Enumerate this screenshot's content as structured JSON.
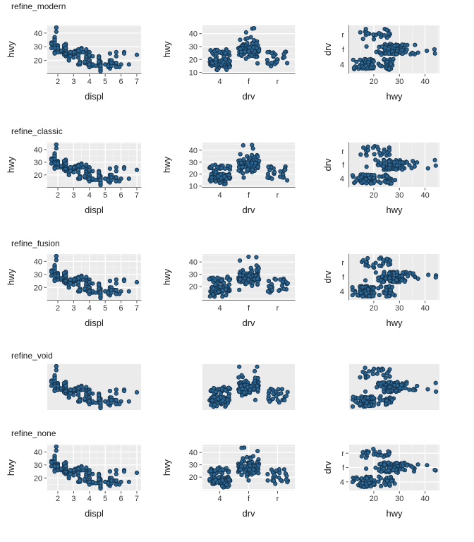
{
  "figure": {
    "description": "grid of scatter plots comparing five ggplot theme refinements",
    "row_titles": [
      "refine_modern",
      "refine_classic",
      "refine_fusion",
      "refine_void",
      "refine_none"
    ]
  },
  "colors": {
    "page_bg": "#ffffff",
    "panel_bg": "#EBEBEB",
    "grid_major": "#FFFFFF",
    "grid_minor": "#F5F5F5",
    "axis_line": "#7F7F7F",
    "tick_mark": "#555555",
    "tick_label": "#333333",
    "axis_title": "#1a1a1a",
    "title": "#1a1a1a",
    "point_fill": "#2c6793",
    "point_stroke": "#15344f"
  },
  "chart_data": {
    "type": "scatter",
    "variables": [
      "displ",
      "hwy",
      "drv"
    ],
    "rows": [
      {
        "title": "refine_modern",
        "axis_text": true,
        "grid": "horizontal-only on xy plot"
      },
      {
        "title": "refine_classic",
        "axis_text": true,
        "grid": "full grid on xy plot"
      },
      {
        "title": "refine_fusion",
        "axis_text": true,
        "grid": "full grid on xy plot"
      },
      {
        "title": "refine_void",
        "axis_text": false,
        "grid": "none"
      },
      {
        "title": "refine_none",
        "axis_text": true,
        "grid": "full grid, ticks on all axes"
      }
    ],
    "panels": [
      {
        "xlabel": "displ",
        "ylabel": "hwy",
        "x_ticks": [
          2,
          3,
          4,
          5,
          6,
          7
        ],
        "y_ticks": [
          20,
          30,
          40
        ],
        "x_minor": [
          1.5,
          2.5,
          3.5,
          4.5,
          5.5,
          6.5
        ],
        "y_minor": [
          15,
          25,
          35,
          45
        ],
        "x_range": [
          1.33,
          7.27
        ],
        "y_range": [
          10.4,
          45.6
        ],
        "jitter": false
      },
      {
        "xlabel": "drv",
        "ylabel": "hwy",
        "x_categories": [
          "4",
          "f",
          "r"
        ],
        "y_grid": [
          10,
          20,
          30,
          40
        ],
        "y_minor": [
          15,
          25,
          35,
          45
        ],
        "y_ticks_rows_1_2": [
          10,
          20,
          30,
          40
        ],
        "y_ticks_rows_3_5": [
          20,
          30,
          40
        ],
        "x_range": [
          0.4,
          3.6
        ],
        "y_range": [
          9.2,
          46.4
        ],
        "jitter": true
      },
      {
        "xlabel": "hwy",
        "ylabel": "drv",
        "x_ticks": [
          20,
          30,
          40
        ],
        "x_minor": [
          15,
          25,
          35,
          45
        ],
        "y_categories_top_to_bottom": [
          "r",
          "f",
          "4"
        ],
        "x_range": [
          10.4,
          45.6
        ],
        "y_range": [
          0.4,
          3.6
        ],
        "jitter": true
      }
    ],
    "points_format": [
      "displ",
      "hwy",
      "drv"
    ],
    "points": [
      [
        1.8,
        29,
        "f"
      ],
      [
        1.8,
        29,
        "f"
      ],
      [
        2,
        31,
        "f"
      ],
      [
        2,
        30,
        "f"
      ],
      [
        2.8,
        26,
        "f"
      ],
      [
        2.8,
        26,
        "f"
      ],
      [
        3.1,
        27,
        "f"
      ],
      [
        1.8,
        26,
        "4"
      ],
      [
        1.8,
        25,
        "4"
      ],
      [
        2,
        28,
        "4"
      ],
      [
        2,
        27,
        "4"
      ],
      [
        2.8,
        25,
        "4"
      ],
      [
        2.8,
        25,
        "4"
      ],
      [
        3.1,
        25,
        "4"
      ],
      [
        3.1,
        25,
        "4"
      ],
      [
        2.8,
        24,
        "4"
      ],
      [
        3.1,
        25,
        "4"
      ],
      [
        4.2,
        23,
        "4"
      ],
      [
        5.3,
        20,
        "r"
      ],
      [
        5.3,
        15,
        "r"
      ],
      [
        5.3,
        20,
        "r"
      ],
      [
        5.7,
        17,
        "r"
      ],
      [
        6,
        17,
        "r"
      ],
      [
        5.7,
        26,
        "r"
      ],
      [
        5.7,
        23,
        "r"
      ],
      [
        6.2,
        26,
        "r"
      ],
      [
        6.2,
        25,
        "r"
      ],
      [
        7,
        24,
        "r"
      ],
      [
        5.3,
        19,
        "4"
      ],
      [
        5.3,
        14,
        "4"
      ],
      [
        5.7,
        15,
        "4"
      ],
      [
        6.5,
        17,
        "4"
      ],
      [
        2.4,
        27,
        "f"
      ],
      [
        2.4,
        30,
        "f"
      ],
      [
        3.1,
        26,
        "f"
      ],
      [
        3.5,
        29,
        "f"
      ],
      [
        3.6,
        26,
        "f"
      ],
      [
        2.4,
        24,
        "f"
      ],
      [
        3,
        24,
        "f"
      ],
      [
        3.3,
        22,
        "f"
      ],
      [
        3.3,
        22,
        "f"
      ],
      [
        3.3,
        24,
        "f"
      ],
      [
        3.3,
        24,
        "f"
      ],
      [
        3.3,
        17,
        "f"
      ],
      [
        3.8,
        22,
        "f"
      ],
      [
        3.8,
        21,
        "f"
      ],
      [
        3.8,
        23,
        "f"
      ],
      [
        4,
        23,
        "f"
      ],
      [
        3.7,
        19,
        "4"
      ],
      [
        3.7,
        18,
        "4"
      ],
      [
        3.9,
        17,
        "4"
      ],
      [
        3.9,
        17,
        "4"
      ],
      [
        4.7,
        19,
        "4"
      ],
      [
        4.7,
        19,
        "4"
      ],
      [
        4.7,
        12,
        "4"
      ],
      [
        5.2,
        17,
        "4"
      ],
      [
        5.2,
        15,
        "4"
      ],
      [
        3.9,
        17,
        "4"
      ],
      [
        4.7,
        17,
        "4"
      ],
      [
        4.7,
        12,
        "4"
      ],
      [
        4.7,
        17,
        "4"
      ],
      [
        5.2,
        16,
        "4"
      ],
      [
        5.7,
        18,
        "4"
      ],
      [
        5.9,
        15,
        "4"
      ],
      [
        4.7,
        17,
        "4"
      ],
      [
        4.7,
        15,
        "4"
      ],
      [
        4.7,
        13,
        "4"
      ],
      [
        4.7,
        13,
        "4"
      ],
      [
        4.7,
        17,
        "4"
      ],
      [
        4.7,
        16,
        "4"
      ],
      [
        4.7,
        12,
        "4"
      ],
      [
        5.2,
        15,
        "4"
      ],
      [
        5.2,
        16,
        "4"
      ],
      [
        5.7,
        15,
        "4"
      ],
      [
        4.6,
        17,
        "r"
      ],
      [
        5.4,
        17,
        "r"
      ],
      [
        5.4,
        18,
        "r"
      ],
      [
        4,
        17,
        "4"
      ],
      [
        4,
        17,
        "4"
      ],
      [
        4,
        18,
        "4"
      ],
      [
        4,
        17,
        "4"
      ],
      [
        4.6,
        19,
        "4"
      ],
      [
        5,
        17,
        "4"
      ],
      [
        4.2,
        17,
        "4"
      ],
      [
        4.2,
        16,
        "4"
      ],
      [
        4.6,
        16,
        "4"
      ],
      [
        4.6,
        17,
        "4"
      ],
      [
        4.6,
        17,
        "4"
      ],
      [
        4.6,
        16,
        "4"
      ],
      [
        5.4,
        17,
        "4"
      ],
      [
        3.8,
        26,
        "r"
      ],
      [
        3.8,
        25,
        "r"
      ],
      [
        4,
        26,
        "r"
      ],
      [
        4,
        24,
        "r"
      ],
      [
        4.6,
        21,
        "r"
      ],
      [
        4.6,
        22,
        "r"
      ],
      [
        4.6,
        23,
        "r"
      ],
      [
        4.6,
        22,
        "r"
      ],
      [
        5.4,
        20,
        "r"
      ],
      [
        1.6,
        33,
        "f"
      ],
      [
        1.6,
        32,
        "f"
      ],
      [
        1.6,
        32,
        "f"
      ],
      [
        1.6,
        29,
        "f"
      ],
      [
        1.6,
        32,
        "f"
      ],
      [
        1.8,
        34,
        "f"
      ],
      [
        1.8,
        36,
        "f"
      ],
      [
        1.8,
        36,
        "f"
      ],
      [
        2,
        29,
        "f"
      ],
      [
        2.4,
        26,
        "f"
      ],
      [
        2.4,
        27,
        "f"
      ],
      [
        2.4,
        30,
        "f"
      ],
      [
        2.4,
        31,
        "f"
      ],
      [
        2.5,
        26,
        "f"
      ],
      [
        2.5,
        26,
        "f"
      ],
      [
        3.3,
        28,
        "f"
      ],
      [
        2,
        26,
        "f"
      ],
      [
        2,
        29,
        "f"
      ],
      [
        2,
        28,
        "f"
      ],
      [
        2,
        27,
        "f"
      ],
      [
        2.7,
        24,
        "f"
      ],
      [
        2.7,
        24,
        "f"
      ],
      [
        2.7,
        24,
        "f"
      ],
      [
        3,
        22,
        "4"
      ],
      [
        3.7,
        19,
        "4"
      ],
      [
        4,
        20,
        "4"
      ],
      [
        4,
        17,
        "4"
      ],
      [
        4,
        15,
        "4"
      ],
      [
        4.7,
        18,
        "4"
      ],
      [
        4.7,
        14,
        "4"
      ],
      [
        5.7,
        18,
        "4"
      ],
      [
        4,
        15,
        "4"
      ],
      [
        4.2,
        17,
        "4"
      ],
      [
        4.4,
        16,
        "4"
      ],
      [
        4.6,
        18,
        "4"
      ],
      [
        5.4,
        17,
        "r"
      ],
      [
        5.4,
        16,
        "r"
      ],
      [
        5.4,
        18,
        "r"
      ],
      [
        4,
        17,
        "4"
      ],
      [
        4,
        19,
        "4"
      ],
      [
        4.6,
        19,
        "4"
      ],
      [
        5,
        17,
        "4"
      ],
      [
        2.4,
        29,
        "f"
      ],
      [
        2.4,
        27,
        "f"
      ],
      [
        2.5,
        31,
        "f"
      ],
      [
        2.5,
        32,
        "f"
      ],
      [
        3.5,
        27,
        "f"
      ],
      [
        3.5,
        26,
        "f"
      ],
      [
        3,
        26,
        "f"
      ],
      [
        3,
        25,
        "f"
      ],
      [
        3.5,
        26,
        "f"
      ],
      [
        3.3,
        17,
        "4"
      ],
      [
        3.3,
        17,
        "4"
      ],
      [
        4,
        20,
        "4"
      ],
      [
        5.6,
        18,
        "4"
      ],
      [
        3.1,
        26,
        "f"
      ],
      [
        3.8,
        26,
        "f"
      ],
      [
        3.8,
        27,
        "f"
      ],
      [
        3.8,
        28,
        "f"
      ],
      [
        5.3,
        25,
        "f"
      ],
      [
        2.5,
        26,
        "4"
      ],
      [
        2.5,
        27,
        "4"
      ],
      [
        2.5,
        25,
        "4"
      ],
      [
        2.5,
        23,
        "4"
      ],
      [
        2.5,
        24,
        "4"
      ],
      [
        2.5,
        25,
        "4"
      ],
      [
        2.2,
        26,
        "4"
      ],
      [
        2.2,
        26,
        "4"
      ],
      [
        2.5,
        25,
        "4"
      ],
      [
        2.5,
        26,
        "4"
      ],
      [
        2.5,
        27,
        "4"
      ],
      [
        2.5,
        26,
        "4"
      ],
      [
        2.5,
        25,
        "4"
      ],
      [
        2.5,
        27,
        "4"
      ],
      [
        2.7,
        20,
        "4"
      ],
      [
        2.7,
        20,
        "4"
      ],
      [
        3.4,
        19,
        "4"
      ],
      [
        3.4,
        17,
        "4"
      ],
      [
        4,
        20,
        "4"
      ],
      [
        4.7,
        17,
        "4"
      ],
      [
        2.2,
        26,
        "f"
      ],
      [
        2.2,
        27,
        "f"
      ],
      [
        2.4,
        28,
        "f"
      ],
      [
        2.4,
        31,
        "f"
      ],
      [
        3,
        26,
        "f"
      ],
      [
        3,
        26,
        "f"
      ],
      [
        3.5,
        28,
        "f"
      ],
      [
        2.2,
        26,
        "f"
      ],
      [
        2.2,
        27,
        "f"
      ],
      [
        2.4,
        30,
        "f"
      ],
      [
        2.4,
        31,
        "f"
      ],
      [
        2.4,
        31,
        "f"
      ],
      [
        3,
        26,
        "f"
      ],
      [
        3.3,
        27,
        "f"
      ],
      [
        1.8,
        30,
        "f"
      ],
      [
        1.8,
        33,
        "f"
      ],
      [
        1.8,
        35,
        "f"
      ],
      [
        1.8,
        37,
        "f"
      ],
      [
        1.8,
        35,
        "f"
      ],
      [
        4.7,
        16,
        "4"
      ],
      [
        5.7,
        18,
        "4"
      ],
      [
        2.7,
        20,
        "4"
      ],
      [
        2.7,
        22,
        "4"
      ],
      [
        3.4,
        19,
        "4"
      ],
      [
        3.4,
        18,
        "4"
      ],
      [
        4,
        20,
        "4"
      ],
      [
        4,
        18,
        "4"
      ],
      [
        4,
        17,
        "4"
      ],
      [
        2,
        29,
        "f"
      ],
      [
        2,
        26,
        "f"
      ],
      [
        2,
        28,
        "f"
      ],
      [
        2,
        29,
        "f"
      ],
      [
        2.8,
        24,
        "f"
      ],
      [
        1.9,
        44,
        "f"
      ],
      [
        2,
        29,
        "f"
      ],
      [
        2,
        26,
        "f"
      ],
      [
        2,
        29,
        "f"
      ],
      [
        2,
        29,
        "f"
      ],
      [
        2.5,
        29,
        "f"
      ],
      [
        2.5,
        29,
        "f"
      ],
      [
        2.8,
        24,
        "f"
      ],
      [
        2.8,
        23,
        "f"
      ],
      [
        1.9,
        44,
        "f"
      ],
      [
        1.9,
        41,
        "f"
      ],
      [
        2,
        29,
        "f"
      ],
      [
        2,
        26,
        "f"
      ],
      [
        2.5,
        28,
        "f"
      ],
      [
        2.5,
        29,
        "f"
      ],
      [
        1.8,
        29,
        "f"
      ],
      [
        1.8,
        29,
        "f"
      ],
      [
        2,
        28,
        "f"
      ],
      [
        2,
        29,
        "f"
      ],
      [
        2.8,
        26,
        "f"
      ],
      [
        2.8,
        26,
        "f"
      ],
      [
        3.6,
        26,
        "f"
      ]
    ]
  }
}
